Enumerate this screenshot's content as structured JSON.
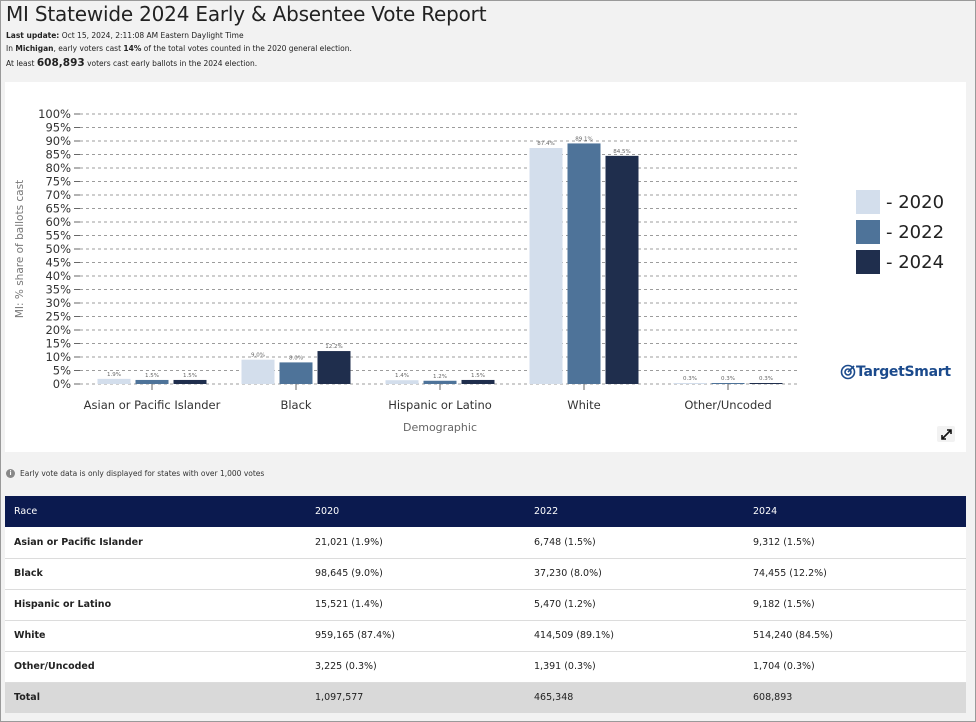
{
  "header": {
    "title": "MI Statewide 2024 Early & Absentee Vote Report",
    "last_update_label": "Last update:",
    "last_update_value": "Oct 15, 2024, 2:11:08 AM Eastern Daylight Time",
    "line2_pre": "In",
    "line2_state": "Michigan",
    "line2_mid": ", early voters cast",
    "line2_pct": "14%",
    "line2_post": "of the total votes counted in the 2020 general election.",
    "line3_pre": "At least",
    "line3_count": "608,893",
    "line3_post": "voters cast early ballots in the 2024 election."
  },
  "chart_data": {
    "type": "bar",
    "categories": [
      "Asian or Pacific Islander",
      "Black",
      "Hispanic or Latino",
      "White",
      "Other/Uncoded"
    ],
    "series": [
      {
        "name": "2020",
        "values": [
          1.9,
          9.0,
          1.4,
          87.4,
          0.3
        ],
        "labels": [
          "1.9%",
          "9.0%",
          "1.4%",
          "87.4%",
          "0.3%"
        ]
      },
      {
        "name": "2022",
        "values": [
          1.5,
          8.0,
          1.2,
          89.1,
          0.3
        ],
        "labels": [
          "1.5%",
          "8.0%",
          "1.2%",
          "89.1%",
          "0.3%"
        ]
      },
      {
        "name": "2024",
        "values": [
          1.5,
          12.2,
          1.5,
          84.5,
          0.3
        ],
        "labels": [
          "1.5%",
          "12.2%",
          "1.5%",
          "84.5%",
          "0.3%"
        ]
      }
    ],
    "colors": [
      "#d3deec",
      "#4e7399",
      "#1f2e4d"
    ],
    "xlabel": "Demographic",
    "ylabel": "MI: % share of ballots cast",
    "ylim": [
      0,
      100
    ],
    "yticks": [
      "0%",
      "5%",
      "10%",
      "15%",
      "20%",
      "25%",
      "30%",
      "35%",
      "40%",
      "45%",
      "50%",
      "55%",
      "60%",
      "65%",
      "70%",
      "75%",
      "80%",
      "85%",
      "90%",
      "95%",
      "100%"
    ],
    "grid": true,
    "legend_position": "right"
  },
  "legend": [
    {
      "label": "- 2020",
      "color": "#d3deec"
    },
    {
      "label": "- 2022",
      "color": "#4e7399"
    },
    {
      "label": "- 2024",
      "color": "#1f2e4d"
    }
  ],
  "logo_text": "TargetSmart",
  "expand_icon": "expand-icon",
  "note": "Early vote data is only displayed for states with over 1,000 votes",
  "table": {
    "headers": [
      "Race",
      "2020",
      "2022",
      "2024"
    ],
    "rows": [
      [
        "Asian or Pacific Islander",
        "21,021 (1.9%)",
        "6,748 (1.5%)",
        "9,312 (1.5%)"
      ],
      [
        "Black",
        "98,645 (9.0%)",
        "37,230 (8.0%)",
        "74,455 (12.2%)"
      ],
      [
        "Hispanic or Latino",
        "15,521 (1.4%)",
        "5,470 (1.2%)",
        "9,182 (1.5%)"
      ],
      [
        "White",
        "959,165 (87.4%)",
        "414,509 (89.1%)",
        "514,240 (84.5%)"
      ],
      [
        "Other/Uncoded",
        "3,225 (0.3%)",
        "1,391 (0.3%)",
        "1,704 (0.3%)"
      ]
    ],
    "total": [
      "Total",
      "1,097,577",
      "465,348",
      "608,893"
    ]
  }
}
